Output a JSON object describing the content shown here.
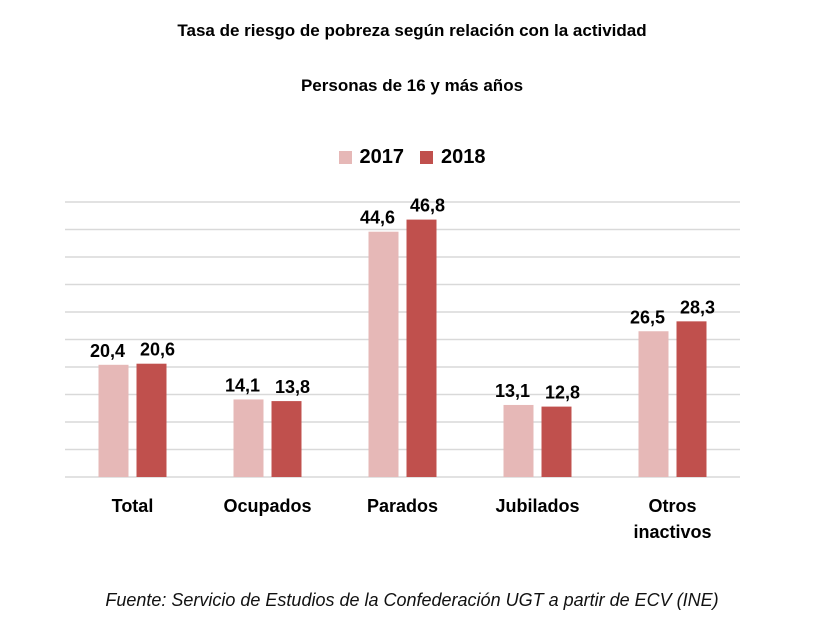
{
  "chart_data": {
    "type": "bar",
    "title": "Tasa de riesgo de pobreza según relación con la actividad",
    "subtitle": "Personas de 16 y más años",
    "categories": [
      [
        "Total"
      ],
      [
        "Ocupados"
      ],
      [
        "Parados"
      ],
      [
        "Jubilados"
      ],
      [
        "Otros",
        "inactivos"
      ]
    ],
    "series": [
      {
        "name": "2017",
        "color": "#e6b8b7",
        "values": [
          20.4,
          14.1,
          44.6,
          13.1,
          26.5
        ],
        "labels": [
          "20,4",
          "14,1",
          "44,6",
          "13,1",
          "26,5"
        ]
      },
      {
        "name": "2018",
        "color": "#c0504d",
        "values": [
          20.6,
          13.8,
          46.8,
          12.8,
          28.3
        ],
        "labels": [
          "20,6",
          "13,8",
          "46,8",
          "12,8",
          "28,3"
        ]
      }
    ],
    "xlabel": "",
    "ylabel": "",
    "ylim": [
      0,
      50
    ],
    "ytick_step": 5,
    "y_axis_labels_visible": false,
    "grid": true,
    "gridline_color": "#d9d9d9",
    "legend_position": "top-center",
    "source": "Fuente: Servicio de Estudios de la Confederación UGT a partir de ECV (INE)"
  }
}
